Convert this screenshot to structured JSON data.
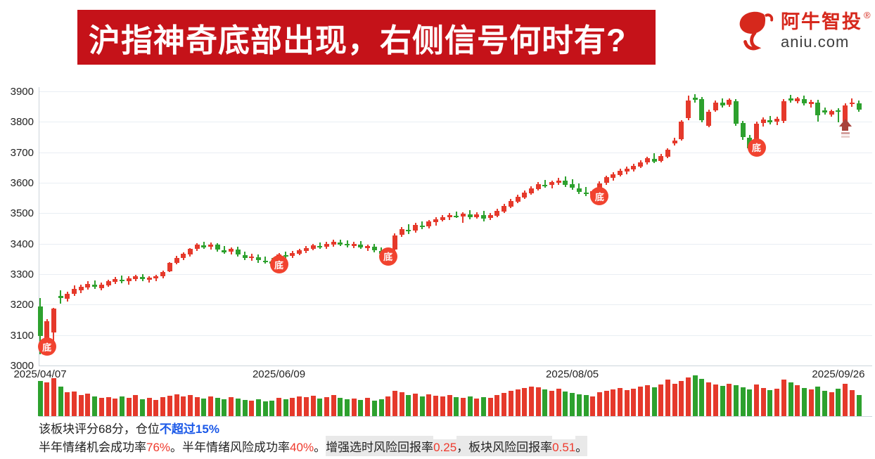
{
  "banner": {
    "title": "沪指神奇底部出现，右侧信号何时有?"
  },
  "logo": {
    "brand": "阿牛智投",
    "reg_mark": "®",
    "domain": "aniu.com",
    "brand_color": "#d6281c"
  },
  "chart_data": {
    "type": "candlestick+volume",
    "y_axis": {
      "min": 3000,
      "max": 3900,
      "tick_step": 100,
      "tick_labels": [
        "3000",
        "3100",
        "3200",
        "3300",
        "3400",
        "3500",
        "3600",
        "3700",
        "3800",
        "3900"
      ]
    },
    "x_axis": {
      "tick_labels": [
        "2025/04/07",
        "2025/06/09",
        "2025/08/05",
        "2025/09/26"
      ],
      "tick_candle_indices": [
        0,
        35,
        78,
        117
      ]
    },
    "colors": {
      "up": "#e5392b",
      "down": "#2da12e",
      "bottom_badge": "#f1432f",
      "arrow": "#a8423b",
      "grid": "#e9eef3",
      "axis": "#ccd4db"
    },
    "markers": {
      "bottom_label": "底",
      "bottom_signal_indices": [
        1,
        35,
        51,
        82,
        105
      ],
      "up_arrow_indices": [
        118
      ]
    },
    "candles_ohlc": [
      [
        3193,
        3222,
        3038,
        3096
      ],
      [
        3078,
        3152,
        3048,
        3146
      ],
      [
        3108,
        3190,
        3062,
        3186
      ],
      [
        3228,
        3248,
        3202,
        3222
      ],
      [
        3220,
        3242,
        3210,
        3236
      ],
      [
        3236,
        3262,
        3228,
        3252
      ],
      [
        3248,
        3266,
        3238,
        3258
      ],
      [
        3256,
        3276,
        3250,
        3268
      ],
      [
        3266,
        3280,
        3252,
        3258
      ],
      [
        3254,
        3272,
        3246,
        3266
      ],
      [
        3264,
        3282,
        3258,
        3276
      ],
      [
        3274,
        3290,
        3268,
        3284
      ],
      [
        3282,
        3296,
        3270,
        3278
      ],
      [
        3276,
        3292,
        3266,
        3286
      ],
      [
        3284,
        3298,
        3276,
        3292
      ],
      [
        3290,
        3300,
        3278,
        3284
      ],
      [
        3282,
        3294,
        3272,
        3288
      ],
      [
        3286,
        3298,
        3278,
        3294
      ],
      [
        3292,
        3312,
        3286,
        3308
      ],
      [
        3310,
        3340,
        3306,
        3336
      ],
      [
        3338,
        3360,
        3332,
        3354
      ],
      [
        3352,
        3372,
        3346,
        3366
      ],
      [
        3364,
        3386,
        3358,
        3382
      ],
      [
        3384,
        3402,
        3376,
        3396
      ],
      [
        3394,
        3406,
        3382,
        3388
      ],
      [
        3390,
        3404,
        3380,
        3398
      ],
      [
        3396,
        3402,
        3374,
        3380
      ],
      [
        3378,
        3392,
        3366,
        3372
      ],
      [
        3374,
        3388,
        3364,
        3382
      ],
      [
        3380,
        3390,
        3358,
        3364
      ],
      [
        3362,
        3374,
        3346,
        3352
      ],
      [
        3354,
        3368,
        3344,
        3358
      ],
      [
        3356,
        3364,
        3338,
        3346
      ],
      [
        3344,
        3358,
        3334,
        3340
      ],
      [
        3342,
        3354,
        3328,
        3334
      ],
      [
        3332,
        3370,
        3318,
        3364
      ],
      [
        3362,
        3374,
        3350,
        3358
      ],
      [
        3360,
        3376,
        3354,
        3370
      ],
      [
        3368,
        3384,
        3362,
        3378
      ],
      [
        3376,
        3392,
        3370,
        3386
      ],
      [
        3384,
        3400,
        3378,
        3394
      ],
      [
        3392,
        3404,
        3382,
        3388
      ],
      [
        3390,
        3406,
        3384,
        3400
      ],
      [
        3398,
        3412,
        3390,
        3406
      ],
      [
        3404,
        3414,
        3392,
        3398
      ],
      [
        3400,
        3410,
        3388,
        3394
      ],
      [
        3392,
        3406,
        3386,
        3400
      ],
      [
        3398,
        3408,
        3382,
        3388
      ],
      [
        3386,
        3398,
        3376,
        3392
      ],
      [
        3390,
        3400,
        3372,
        3378
      ],
      [
        3376,
        3388,
        3360,
        3366
      ],
      [
        3358,
        3384,
        3344,
        3378
      ],
      [
        3380,
        3434,
        3376,
        3428
      ],
      [
        3430,
        3454,
        3422,
        3448
      ],
      [
        3446,
        3464,
        3432,
        3440
      ],
      [
        3442,
        3468,
        3436,
        3462
      ],
      [
        3460,
        3474,
        3448,
        3454
      ],
      [
        3456,
        3478,
        3450,
        3472
      ],
      [
        3470,
        3486,
        3460,
        3480
      ],
      [
        3478,
        3494,
        3472,
        3488
      ],
      [
        3486,
        3500,
        3478,
        3494
      ],
      [
        3492,
        3506,
        3484,
        3488
      ],
      [
        3490,
        3504,
        3468,
        3498
      ],
      [
        3496,
        3510,
        3480,
        3486
      ],
      [
        3488,
        3502,
        3482,
        3496
      ],
      [
        3494,
        3508,
        3474,
        3482
      ],
      [
        3484,
        3500,
        3478,
        3494
      ],
      [
        3492,
        3514,
        3488,
        3508
      ],
      [
        3506,
        3530,
        3500,
        3524
      ],
      [
        3522,
        3546,
        3516,
        3540
      ],
      [
        3538,
        3560,
        3532,
        3554
      ],
      [
        3552,
        3574,
        3546,
        3568
      ],
      [
        3566,
        3588,
        3560,
        3582
      ],
      [
        3580,
        3602,
        3574,
        3596
      ],
      [
        3594,
        3610,
        3584,
        3590
      ],
      [
        3592,
        3608,
        3582,
        3602
      ],
      [
        3600,
        3616,
        3592,
        3608
      ],
      [
        3606,
        3620,
        3586,
        3594
      ],
      [
        3596,
        3612,
        3578,
        3584
      ],
      [
        3582,
        3598,
        3562,
        3570
      ],
      [
        3568,
        3586,
        3556,
        3562
      ],
      [
        3560,
        3578,
        3548,
        3572
      ],
      [
        3550,
        3604,
        3542,
        3598
      ],
      [
        3600,
        3624,
        3594,
        3618
      ],
      [
        3616,
        3634,
        3608,
        3628
      ],
      [
        3626,
        3646,
        3620,
        3640
      ],
      [
        3636,
        3652,
        3628,
        3646
      ],
      [
        3644,
        3662,
        3638,
        3656
      ],
      [
        3654,
        3674,
        3648,
        3668
      ],
      [
        3666,
        3686,
        3660,
        3680
      ],
      [
        3678,
        3698,
        3664,
        3670
      ],
      [
        3672,
        3694,
        3666,
        3688
      ],
      [
        3686,
        3714,
        3680,
        3708
      ],
      [
        3730,
        3748,
        3722,
        3738
      ],
      [
        3744,
        3806,
        3738,
        3800
      ],
      [
        3812,
        3886,
        3806,
        3870
      ],
      [
        3880,
        3890,
        3862,
        3872
      ],
      [
        3874,
        3882,
        3798,
        3806
      ],
      [
        3788,
        3840,
        3782,
        3834
      ],
      [
        3838,
        3870,
        3832,
        3864
      ],
      [
        3862,
        3876,
        3848,
        3854
      ],
      [
        3856,
        3878,
        3850,
        3872
      ],
      [
        3868,
        3874,
        3786,
        3794
      ],
      [
        3796,
        3804,
        3740,
        3750
      ],
      [
        3748,
        3758,
        3706,
        3714
      ],
      [
        3716,
        3800,
        3702,
        3794
      ],
      [
        3796,
        3814,
        3784,
        3808
      ],
      [
        3806,
        3820,
        3792,
        3798
      ],
      [
        3800,
        3816,
        3790,
        3810
      ],
      [
        3802,
        3874,
        3796,
        3868
      ],
      [
        3876,
        3888,
        3864,
        3870
      ],
      [
        3868,
        3882,
        3860,
        3876
      ],
      [
        3874,
        3886,
        3854,
        3860
      ],
      [
        3858,
        3872,
        3848,
        3866
      ],
      [
        3864,
        3872,
        3800,
        3822
      ],
      [
        3838,
        3846,
        3824,
        3830
      ],
      [
        3824,
        3840,
        3818,
        3836
      ],
      [
        3838,
        3844,
        3798,
        3832
      ],
      [
        3800,
        3860,
        3776,
        3854
      ],
      [
        3858,
        3876,
        3850,
        3864
      ],
      [
        3860,
        3870,
        3834,
        3840
      ]
    ],
    "volume_relative": [
      50,
      48,
      54,
      42,
      34,
      35,
      30,
      32,
      28,
      26,
      27,
      25,
      28,
      26,
      30,
      24,
      26,
      23,
      27,
      29,
      31,
      28,
      30,
      27,
      25,
      28,
      26,
      24,
      27,
      25,
      23,
      22,
      24,
      21,
      22,
      26,
      24,
      26,
      28,
      27,
      29,
      25,
      27,
      30,
      26,
      24,
      25,
      23,
      26,
      22,
      24,
      28,
      36,
      34,
      30,
      32,
      28,
      31,
      29,
      28,
      30,
      27,
      26,
      28,
      25,
      27,
      26,
      30,
      33,
      36,
      38,
      40,
      42,
      41,
      38,
      36,
      39,
      35,
      33,
      31,
      30,
      28,
      34,
      36,
      38,
      40,
      37,
      39,
      42,
      44,
      41,
      45,
      52,
      46,
      50,
      55,
      58,
      53,
      48,
      45,
      43,
      46,
      44,
      41,
      38,
      45,
      40,
      37,
      39,
      52,
      48,
      44,
      40,
      38,
      42,
      36,
      34,
      39,
      46,
      37,
      30
    ]
  },
  "footer": {
    "line1_parts": [
      {
        "text": "该板块评分68分，仓位",
        "color": "#222222",
        "bold": false
      },
      {
        "text": "不超过15%",
        "color": "#1a58e8",
        "bold": true
      }
    ],
    "line2_parts": [
      {
        "text": "半年情绪机会成功率",
        "color": "#222222"
      },
      {
        "text": "76%",
        "color": "#ef392c"
      },
      {
        "text": "。半年情绪风险成功率",
        "color": "#222222"
      },
      {
        "text": "40%",
        "color": "#ef392c"
      },
      {
        "text": "。",
        "color": "#222222"
      },
      {
        "text": "增强选时风险回报率",
        "color": "#222222",
        "bg": "#e9e9e9"
      },
      {
        "text": "0.25",
        "color": "#ef392c",
        "bg": "#e9e9e9"
      },
      {
        "text": "，板块风险回报率",
        "color": "#222222",
        "bg": "#e9e9e9"
      },
      {
        "text": "0.51",
        "color": "#ef392c",
        "bg": "#e9e9e9"
      },
      {
        "text": "。",
        "color": "#222222",
        "bg": "#e9e9e9"
      }
    ]
  }
}
